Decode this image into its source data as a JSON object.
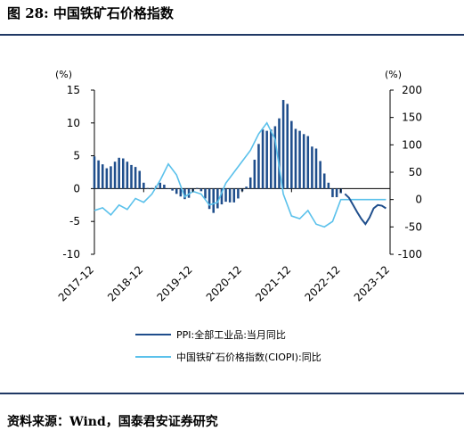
{
  "figure": {
    "title": "图 28: 中国铁矿石价格指数",
    "source": "资料来源：Wind，国泰君安证券研究"
  },
  "colors": {
    "ppi": "#1f4e8c",
    "ciopi": "#5bc1eb",
    "rule": "#1f3864"
  },
  "chart_data": {
    "type": "bar",
    "x_tick_labels": [
      "2017-12",
      "2018-12",
      "2019-12",
      "2020-12",
      "2021-12",
      "2022-12",
      "2023-12"
    ],
    "y_left": {
      "unit": "(%)",
      "ylim": [
        -10,
        15
      ],
      "ticks": [
        "15",
        "10",
        "5",
        "0",
        "-5",
        "-10"
      ]
    },
    "y_right": {
      "unit": "(%)",
      "ylim": [
        -100,
        200
      ],
      "ticks": [
        "200",
        "150",
        "100",
        "50",
        "0",
        "-50",
        "-100"
      ]
    },
    "legend_position": "bottom",
    "series": [
      {
        "name": "PPI:全部工业品:当月同比",
        "type": "bar",
        "axis": "left",
        "x": [
          "2017-12",
          "2018-01",
          "2018-02",
          "2018-03",
          "2018-04",
          "2018-05",
          "2018-06",
          "2018-07",
          "2018-08",
          "2018-09",
          "2018-10",
          "2018-11",
          "2018-12",
          "2019-01",
          "2019-02",
          "2019-03",
          "2019-04",
          "2019-05",
          "2019-06",
          "2019-07",
          "2019-08",
          "2019-09",
          "2019-10",
          "2019-11",
          "2019-12",
          "2020-01",
          "2020-02",
          "2020-03",
          "2020-04",
          "2020-05",
          "2020-06",
          "2020-07",
          "2020-08",
          "2020-09",
          "2020-10",
          "2020-11",
          "2020-12",
          "2021-01",
          "2021-02",
          "2021-03",
          "2021-04",
          "2021-05",
          "2021-06",
          "2021-07",
          "2021-08",
          "2021-09",
          "2021-10",
          "2021-11",
          "2021-12",
          "2022-01",
          "2022-02",
          "2022-03",
          "2022-04",
          "2022-05",
          "2022-06",
          "2022-07",
          "2022-08",
          "2022-09",
          "2022-10",
          "2022-11",
          "2022-12"
        ],
        "values": [
          4.9,
          4.3,
          3.7,
          3.1,
          3.4,
          4.1,
          4.7,
          4.6,
          4.1,
          3.6,
          3.3,
          2.7,
          0.9,
          0.1,
          0.1,
          0.4,
          0.9,
          0.6,
          0.0,
          -0.3,
          -0.8,
          -1.2,
          -1.6,
          -1.4,
          -0.5,
          0.1,
          -0.4,
          -1.5,
          -3.1,
          -3.7,
          -3.0,
          -2.4,
          -2.0,
          -2.1,
          -2.1,
          -1.5,
          -0.4,
          0.3,
          1.7,
          4.4,
          6.8,
          9.0,
          8.8,
          9.0,
          9.5,
          10.7,
          13.5,
          12.9,
          10.3,
          9.1,
          8.8,
          8.3,
          8.0,
          6.4,
          6.1,
          4.2,
          2.3,
          0.9,
          -1.3,
          -1.3,
          -0.7
        ]
      },
      {
        "name": "PPI:全部工业品:当月同比",
        "type": "line",
        "axis": "left",
        "x": [
          "2023-01",
          "2023-02",
          "2023-03",
          "2023-04",
          "2023-05",
          "2023-06",
          "2023-07",
          "2023-08",
          "2023-09",
          "2023-10",
          "2023-11"
        ],
        "values": [
          -0.8,
          -1.4,
          -2.5,
          -3.6,
          -4.6,
          -5.4,
          -4.4,
          -3.0,
          -2.5,
          -2.6,
          -3.0
        ]
      },
      {
        "name": "中国铁矿石价格指数(CIOPI):同比",
        "type": "line",
        "axis": "right",
        "x": [
          "2017-12",
          "2018-02",
          "2018-04",
          "2018-06",
          "2018-08",
          "2018-10",
          "2018-12",
          "2019-02",
          "2019-04",
          "2019-06",
          "2019-08",
          "2019-10",
          "2019-12",
          "2020-02",
          "2020-04",
          "2020-06",
          "2020-08",
          "2020-10",
          "2020-12",
          "2021-02",
          "2021-04",
          "2021-06",
          "2021-08",
          "2021-10",
          "2021-12",
          "2022-02",
          "2022-04",
          "2022-06",
          "2022-08",
          "2022-10",
          "2022-12",
          "2023-02",
          "2023-04",
          "2023-06",
          "2023-08",
          "2023-10",
          "2023-11"
        ],
        "values": [
          -20,
          -15,
          -28,
          -10,
          -18,
          2,
          -5,
          10,
          35,
          65,
          45,
          5,
          15,
          10,
          -10,
          -5,
          30,
          50,
          70,
          90,
          120,
          140,
          110,
          10,
          -30,
          -35,
          -20,
          -45,
          -50,
          -40,
          0,
          0,
          0,
          0,
          0,
          0,
          0
        ]
      }
    ]
  }
}
